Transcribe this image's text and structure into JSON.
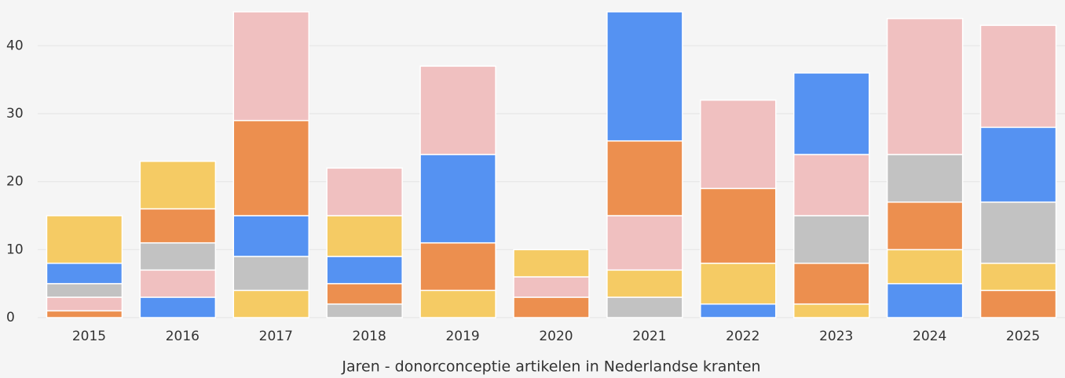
{
  "chart_data": {
    "type": "stacked-bar",
    "x_label": "Jaren - donorconceptie artikelen in Nederlandse kranten",
    "categories": [
      "2015",
      "2016",
      "2017",
      "2018",
      "2019",
      "2020",
      "2021",
      "2022",
      "2023",
      "2024",
      "2025"
    ],
    "stacks": [
      [
        {
          "color": "#ec8f4f",
          "value": 1
        },
        {
          "color": "#f0c0c0",
          "value": 2
        },
        {
          "color": "#c2c2c2",
          "value": 2
        },
        {
          "color": "#5592f2",
          "value": 3
        },
        {
          "color": "#f5cb64",
          "value": 7
        }
      ],
      [
        {
          "color": "#5592f2",
          "value": 3
        },
        {
          "color": "#f0c0c0",
          "value": 4
        },
        {
          "color": "#c2c2c2",
          "value": 4
        },
        {
          "color": "#ec8f4f",
          "value": 5
        },
        {
          "color": "#f5cb64",
          "value": 7
        }
      ],
      [
        {
          "color": "#f5cb64",
          "value": 4
        },
        {
          "color": "#c2c2c2",
          "value": 5
        },
        {
          "color": "#5592f2",
          "value": 6
        },
        {
          "color": "#ec8f4f",
          "value": 14
        },
        {
          "color": "#f0c0c0",
          "value": 16
        }
      ],
      [
        {
          "color": "#c2c2c2",
          "value": 2
        },
        {
          "color": "#ec8f4f",
          "value": 3
        },
        {
          "color": "#5592f2",
          "value": 4
        },
        {
          "color": "#f5cb64",
          "value": 6
        },
        {
          "color": "#f0c0c0",
          "value": 7
        }
      ],
      [
        {
          "color": "#f5cb64",
          "value": 4
        },
        {
          "color": "#ec8f4f",
          "value": 7
        },
        {
          "color": "#5592f2",
          "value": 13
        },
        {
          "color": "#f0c0c0",
          "value": 13
        }
      ],
      [
        {
          "color": "#ec8f4f",
          "value": 3
        },
        {
          "color": "#f0c0c0",
          "value": 3
        },
        {
          "color": "#f5cb64",
          "value": 4
        }
      ],
      [
        {
          "color": "#c2c2c2",
          "value": 3
        },
        {
          "color": "#f5cb64",
          "value": 4
        },
        {
          "color": "#f0c0c0",
          "value": 8
        },
        {
          "color": "#ec8f4f",
          "value": 11
        },
        {
          "color": "#5592f2",
          "value": 19
        }
      ],
      [
        {
          "color": "#5592f2",
          "value": 2
        },
        {
          "color": "#f5cb64",
          "value": 6
        },
        {
          "color": "#ec8f4f",
          "value": 11
        },
        {
          "color": "#f0c0c0",
          "value": 13
        }
      ],
      [
        {
          "color": "#f5cb64",
          "value": 2
        },
        {
          "color": "#ec8f4f",
          "value": 6
        },
        {
          "color": "#c2c2c2",
          "value": 7
        },
        {
          "color": "#f0c0c0",
          "value": 9
        },
        {
          "color": "#5592f2",
          "value": 12
        }
      ],
      [
        {
          "color": "#5592f2",
          "value": 5
        },
        {
          "color": "#f5cb64",
          "value": 5
        },
        {
          "color": "#ec8f4f",
          "value": 7
        },
        {
          "color": "#c2c2c2",
          "value": 7
        },
        {
          "color": "#f0c0c0",
          "value": 20
        }
      ],
      [
        {
          "color": "#ec8f4f",
          "value": 4
        },
        {
          "color": "#f5cb64",
          "value": 4
        },
        {
          "color": "#c2c2c2",
          "value": 9
        },
        {
          "color": "#5592f2",
          "value": 11
        },
        {
          "color": "#f0c0c0",
          "value": 15
        }
      ]
    ],
    "ylim": [
      0,
      45
    ],
    "yticks": [
      0,
      10,
      20,
      30,
      40
    ],
    "grid": true
  }
}
